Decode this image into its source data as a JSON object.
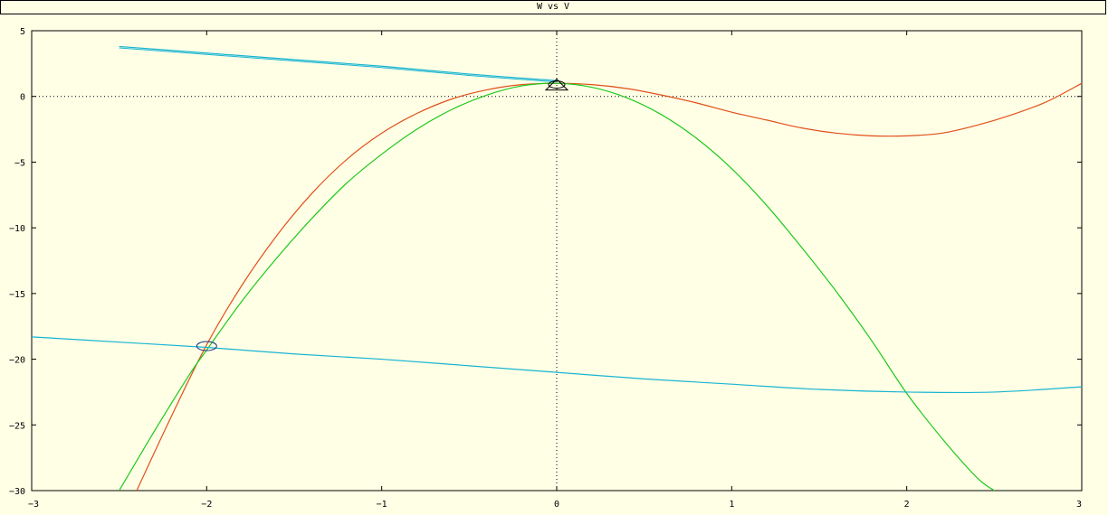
{
  "window": {
    "title": "W vs V"
  },
  "colors": {
    "background": "#ffffe6",
    "axes": "#000000",
    "orange": "#e0501a",
    "green": "#1ec81e",
    "cyan": "#18b4d2",
    "dark": "#000000"
  },
  "chart_data": {
    "type": "line",
    "title": "",
    "xlabel": "",
    "ylabel": "",
    "xlim": [
      -3,
      3
    ],
    "ylim": [
      -30,
      5
    ],
    "grid": false,
    "zero_lines": true,
    "x_ticks": [
      -3,
      -2,
      -1,
      0,
      1,
      2,
      3
    ],
    "x_tick_labels": [
      "−3",
      "−2",
      "−1",
      "0",
      "1",
      "2",
      "3"
    ],
    "y_ticks": [
      5,
      0,
      -5,
      -10,
      -15,
      -20,
      -25,
      -30
    ],
    "y_tick_labels": [
      "5",
      "0",
      "−5",
      "−10",
      "−15",
      "−20",
      "−25",
      "−30"
    ],
    "series": [
      {
        "color": "#e0501a",
        "x": [
          -2.4,
          -2.2,
          -2.0,
          -1.8,
          -1.6,
          -1.4,
          -1.2,
          -1.0,
          -0.8,
          -0.6,
          -0.4,
          -0.2,
          0.0,
          0.2,
          0.4,
          0.6,
          0.8,
          1.0,
          1.2,
          1.4,
          1.6,
          1.8,
          2.0,
          2.2,
          2.4,
          2.6,
          2.8,
          3.0
        ],
        "y": [
          -30.0,
          -24.3,
          -18.9,
          -14.4,
          -10.6,
          -7.4,
          -4.8,
          -2.8,
          -1.3,
          -0.2,
          0.5,
          0.9,
          1.0,
          0.9,
          0.6,
          0.1,
          -0.5,
          -1.2,
          -1.8,
          -2.4,
          -2.8,
          -3.0,
          -3.0,
          -2.8,
          -2.2,
          -1.4,
          -0.4,
          1.0
        ]
      },
      {
        "color": "#1ec81e",
        "x": [
          -2.5,
          -2.3,
          -2.1,
          -2.0,
          -1.8,
          -1.6,
          -1.4,
          -1.2,
          -1.0,
          -0.8,
          -0.6,
          -0.4,
          -0.2,
          0.0,
          0.2,
          0.4,
          0.6,
          0.8,
          1.0,
          1.2,
          1.4,
          1.6,
          1.8,
          2.0,
          2.2,
          2.4,
          2.5
        ],
        "y": [
          -30.0,
          -25.5,
          -21.2,
          -19.3,
          -15.6,
          -12.3,
          -9.3,
          -6.6,
          -4.4,
          -2.5,
          -1.0,
          0.1,
          0.8,
          1.0,
          0.7,
          -0.1,
          -1.4,
          -3.2,
          -5.5,
          -8.3,
          -11.5,
          -14.9,
          -18.6,
          -22.6,
          -26.0,
          -29.0,
          -30.0
        ]
      },
      {
        "color": "#18b4d2",
        "x": [
          -3.0,
          -2.5,
          -2.0,
          -1.5,
          -1.0,
          -0.5,
          0.0,
          0.5,
          1.0,
          1.5,
          2.0,
          2.5,
          3.0
        ],
        "y": [
          -18.3,
          -18.7,
          -19.1,
          -19.6,
          -20.0,
          -20.5,
          -21.0,
          -21.5,
          -21.9,
          -22.3,
          -22.5,
          -22.5,
          -22.1
        ]
      },
      {
        "color": "#18b4d2",
        "x": [
          -2.5,
          -2.0,
          -1.5,
          -1.0,
          -0.5,
          0.0
        ],
        "y": [
          3.8,
          3.3,
          2.8,
          2.3,
          1.7,
          1.2
        ]
      }
    ],
    "markers": [
      {
        "shape": "ellipse",
        "x": -2.0,
        "y": -19.0,
        "color": "#1a2a80"
      },
      {
        "shape": "triangle",
        "x": 0.0,
        "y": 0.9,
        "color": "#000000"
      }
    ]
  }
}
